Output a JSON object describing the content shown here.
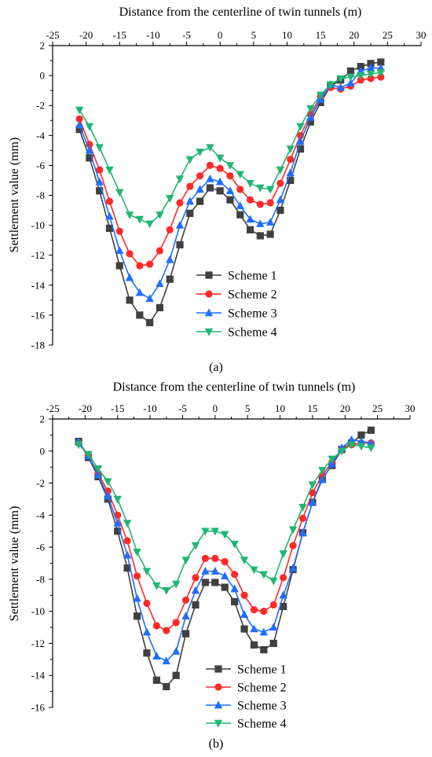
{
  "chart_data": [
    {
      "type": "line",
      "panel_label": "(a)",
      "xlabel": "Distance from the centerline of twin tunnels (m)",
      "ylabel": "Settlement value (mm)",
      "xlim": [
        -25,
        30
      ],
      "ylim": [
        -18,
        2
      ],
      "xticks": [
        -25,
        -20,
        -15,
        -10,
        -5,
        0,
        5,
        10,
        15,
        20,
        25,
        30
      ],
      "yticks": [
        2,
        0,
        -2,
        -4,
        -6,
        -8,
        -10,
        -12,
        -14,
        -16,
        -18
      ],
      "x_axis_position": "top",
      "legend_position": "bottom-center",
      "grid": false,
      "series": [
        {
          "name": "Scheme 1",
          "color": "#404040",
          "marker": "square",
          "x": [
            -21,
            -19.5,
            -18,
            -16.5,
            -15,
            -13.5,
            -12,
            -10.5,
            -9,
            -7.5,
            -6,
            -4.5,
            -3,
            -1.5,
            0,
            1.5,
            3,
            4.5,
            6,
            7.5,
            9,
            10.5,
            12,
            13.5,
            15,
            16.5,
            18,
            19.5,
            21,
            22.5,
            24
          ],
          "y": [
            -3.6,
            -5.5,
            -7.7,
            -10.2,
            -12.7,
            -15.0,
            -16.0,
            -16.5,
            -15.5,
            -13.6,
            -11.3,
            -9.2,
            -8.4,
            -7.5,
            -7.7,
            -8.3,
            -9.3,
            -10.3,
            -10.7,
            -10.6,
            -9.0,
            -7.0,
            -4.9,
            -3.1,
            -1.8,
            -0.7,
            -0.3,
            0.3,
            0.6,
            0.8,
            0.9
          ]
        },
        {
          "name": "Scheme 2",
          "color": "#ff2a2a",
          "marker": "circle",
          "x": [
            -21,
            -19.5,
            -18,
            -16.5,
            -15,
            -13.5,
            -12,
            -10.5,
            -9,
            -7.5,
            -6,
            -4.5,
            -3,
            -1.5,
            0,
            1.5,
            3,
            4.5,
            6,
            7.5,
            9,
            10.5,
            12,
            13.5,
            15,
            16.5,
            18,
            19.5,
            21,
            22.5,
            24
          ],
          "y": [
            -2.9,
            -4.6,
            -6.3,
            -8.4,
            -10.4,
            -11.9,
            -12.7,
            -12.6,
            -11.7,
            -10.3,
            -8.5,
            -7.4,
            -6.7,
            -6.0,
            -6.2,
            -6.7,
            -7.6,
            -8.3,
            -8.6,
            -8.5,
            -7.2,
            -5.6,
            -4.0,
            -2.6,
            -1.4,
            -0.8,
            -0.9,
            -0.7,
            -0.3,
            -0.2,
            -0.1
          ]
        },
        {
          "name": "Scheme 3",
          "color": "#1f6fff",
          "marker": "triangle-up",
          "x": [
            -21,
            -19.5,
            -18,
            -16.5,
            -15,
            -13.5,
            -12,
            -10.5,
            -9,
            -7.5,
            -6,
            -4.5,
            -3,
            -1.5,
            0,
            1.5,
            3,
            4.5,
            6,
            7.5,
            9,
            10.5,
            12,
            13.5,
            15,
            16.5,
            18,
            19.5,
            21,
            22.5,
            24
          ],
          "y": [
            -3.3,
            -5.0,
            -7.1,
            -9.4,
            -11.7,
            -13.5,
            -14.5,
            -14.9,
            -13.9,
            -12.3,
            -10.0,
            -8.4,
            -7.6,
            -6.9,
            -7.1,
            -7.7,
            -8.7,
            -9.6,
            -9.9,
            -9.8,
            -8.3,
            -6.5,
            -4.4,
            -2.8,
            -1.6,
            -0.6,
            -0.8,
            -0.5,
            0.3,
            0.5,
            0.5
          ]
        },
        {
          "name": "Scheme 4",
          "color": "#22b573",
          "marker": "triangle-down",
          "x": [
            -21,
            -19.5,
            -18,
            -16.5,
            -15,
            -13.5,
            -12,
            -10.5,
            -9,
            -7.5,
            -6,
            -4.5,
            -3,
            -1.5,
            0,
            1.5,
            3,
            4.5,
            6,
            7.5,
            9,
            10.5,
            12,
            13.5,
            15,
            16.5,
            18,
            19.5,
            21,
            22.5,
            24
          ],
          "y": [
            -2.3,
            -3.4,
            -4.8,
            -6.3,
            -7.8,
            -9.3,
            -9.6,
            -9.9,
            -9.3,
            -8.2,
            -6.9,
            -5.6,
            -5.1,
            -4.8,
            -5.5,
            -6.0,
            -6.6,
            -7.2,
            -7.5,
            -7.6,
            -6.3,
            -4.9,
            -3.4,
            -2.2,
            -1.3,
            -0.6,
            -0.2,
            -0.1,
            0.0,
            0.1,
            0.2
          ]
        }
      ]
    },
    {
      "type": "line",
      "panel_label": "(b)",
      "xlabel": "Distance from the centerline of twin tunnels (m)",
      "ylabel": "Settlement value (mm)",
      "xlim": [
        -25,
        30
      ],
      "ylim": [
        -16,
        2
      ],
      "xticks": [
        -25,
        -20,
        -15,
        -10,
        -5,
        0,
        5,
        10,
        15,
        20,
        25,
        30
      ],
      "yticks": [
        2,
        0,
        -2,
        -4,
        -6,
        -8,
        -10,
        -12,
        -14,
        -16
      ],
      "x_axis_position": "top",
      "legend_position": "bottom-center",
      "grid": false,
      "series": [
        {
          "name": "Scheme 1",
          "color": "#404040",
          "marker": "square",
          "x": [
            -21,
            -19.5,
            -18,
            -16.5,
            -15,
            -13.5,
            -12,
            -10.5,
            -9,
            -7.5,
            -6,
            -4.5,
            -3,
            -1.5,
            0,
            1.5,
            3,
            4.5,
            6,
            7.5,
            9,
            10.5,
            12,
            13.5,
            15,
            16.5,
            18,
            19.5,
            21,
            22.5,
            24
          ],
          "y": [
            0.6,
            -0.4,
            -1.6,
            -3.0,
            -5.0,
            -7.3,
            -10.3,
            -12.6,
            -14.3,
            -14.7,
            -14.0,
            -11.4,
            -9.6,
            -8.2,
            -8.2,
            -8.5,
            -9.4,
            -11.1,
            -12.1,
            -12.4,
            -12.0,
            -9.7,
            -7.4,
            -5.1,
            -3.2,
            -1.7,
            -0.9,
            0.1,
            0.5,
            1.0,
            1.3
          ]
        },
        {
          "name": "Scheme 2",
          "color": "#ff2a2a",
          "marker": "circle",
          "x": [
            -21,
            -19.5,
            -18,
            -16.5,
            -15,
            -13.5,
            -12,
            -10.5,
            -9,
            -7.5,
            -6,
            -4.5,
            -3,
            -1.5,
            0,
            1.5,
            3,
            4.5,
            6,
            7.5,
            9,
            10.5,
            12,
            13.5,
            15,
            16.5,
            18,
            19.5,
            21,
            22.5,
            24
          ],
          "y": [
            0.5,
            -0.3,
            -1.4,
            -2.5,
            -4.0,
            -5.6,
            -7.8,
            -9.5,
            -10.9,
            -11.2,
            -10.7,
            -9.3,
            -7.9,
            -6.7,
            -6.7,
            -6.9,
            -7.7,
            -9.0,
            -9.9,
            -10.0,
            -9.6,
            -7.9,
            -5.9,
            -4.2,
            -2.6,
            -1.5,
            -0.7,
            0.1,
            0.4,
            0.5,
            0.5
          ]
        },
        {
          "name": "Scheme 3",
          "color": "#1f6fff",
          "marker": "triangle-up",
          "x": [
            -21,
            -19.5,
            -18,
            -16.5,
            -15,
            -13.5,
            -12,
            -10.5,
            -9,
            -7.5,
            -6,
            -4.5,
            -3,
            -1.5,
            0,
            1.5,
            3,
            4.5,
            6,
            7.5,
            9,
            10.5,
            12,
            13.5,
            15,
            16.5,
            18,
            19.5,
            21,
            22.5,
            24
          ],
          "y": [
            0.6,
            -0.3,
            -1.5,
            -2.8,
            -4.5,
            -6.5,
            -9.2,
            -11.3,
            -12.8,
            -13.1,
            -12.5,
            -10.3,
            -8.7,
            -7.5,
            -7.5,
            -7.8,
            -8.6,
            -10.2,
            -11.1,
            -11.3,
            -11.0,
            -9.0,
            -7.3,
            -5.1,
            -3.2,
            -1.8,
            -0.8,
            0.2,
            0.7,
            0.6,
            0.5
          ]
        },
        {
          "name": "Scheme 4",
          "color": "#22b573",
          "marker": "triangle-down",
          "x": [
            -21,
            -19.5,
            -18,
            -16.5,
            -15,
            -13.5,
            -12,
            -10.5,
            -9,
            -7.5,
            -6,
            -4.5,
            -3,
            -1.5,
            0,
            1.5,
            3,
            4.5,
            6,
            7.5,
            9,
            10.5,
            12,
            13.5,
            15,
            16.5,
            18,
            19.5,
            21,
            22.5,
            24
          ],
          "y": [
            0.4,
            -0.2,
            -1.1,
            -1.9,
            -3.0,
            -4.5,
            -6.3,
            -7.5,
            -8.4,
            -8.7,
            -8.3,
            -6.8,
            -5.9,
            -5.0,
            -5.0,
            -5.2,
            -5.8,
            -6.8,
            -7.4,
            -7.7,
            -8.1,
            -6.4,
            -4.9,
            -3.5,
            -2.1,
            -1.2,
            -0.5,
            0.0,
            0.4,
            0.3,
            0.2
          ]
        }
      ]
    }
  ]
}
